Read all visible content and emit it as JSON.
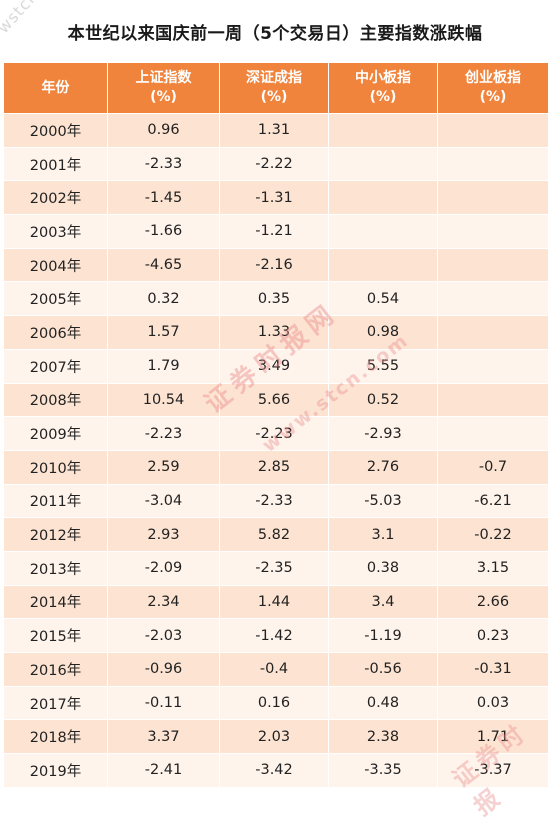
{
  "chart_data": {
    "type": "table",
    "title": "本世纪以来国庆前一周（5个交易日）主要指数涨跌幅",
    "header": {
      "year": "年份",
      "sh": [
        "上证指数",
        "(%)"
      ],
      "sz": [
        "深证成指",
        "(%)"
      ],
      "sme": [
        "中小板指",
        "(%)"
      ],
      "gem": [
        "创业板指",
        "(%)"
      ]
    },
    "rows": [
      {
        "year": "2000年",
        "sh": "0.96",
        "sz": "1.31",
        "sme": "",
        "gem": ""
      },
      {
        "year": "2001年",
        "sh": "-2.33",
        "sz": "-2.22",
        "sme": "",
        "gem": ""
      },
      {
        "year": "2002年",
        "sh": "-1.45",
        "sz": "-1.31",
        "sme": "",
        "gem": ""
      },
      {
        "year": "2003年",
        "sh": "-1.66",
        "sz": "-1.21",
        "sme": "",
        "gem": ""
      },
      {
        "year": "2004年",
        "sh": "-4.65",
        "sz": "-2.16",
        "sme": "",
        "gem": ""
      },
      {
        "year": "2005年",
        "sh": "0.32",
        "sz": "0.35",
        "sme": "0.54",
        "gem": ""
      },
      {
        "year": "2006年",
        "sh": "1.57",
        "sz": "1.33",
        "sme": "0.98",
        "gem": ""
      },
      {
        "year": "2007年",
        "sh": "1.79",
        "sz": "3.49",
        "sme": "5.55",
        "gem": ""
      },
      {
        "year": "2008年",
        "sh": "10.54",
        "sz": "5.66",
        "sme": "0.52",
        "gem": ""
      },
      {
        "year": "2009年",
        "sh": "-2.23",
        "sz": "-2.23",
        "sme": "-2.93",
        "gem": ""
      },
      {
        "year": "2010年",
        "sh": "2.59",
        "sz": "2.85",
        "sme": "2.76",
        "gem": "-0.7"
      },
      {
        "year": "2011年",
        "sh": "-3.04",
        "sz": "-2.33",
        "sme": "-5.03",
        "gem": "-6.21"
      },
      {
        "year": "2012年",
        "sh": "2.93",
        "sz": "5.82",
        "sme": "3.1",
        "gem": "-0.22"
      },
      {
        "year": "2013年",
        "sh": "-2.09",
        "sz": "-2.35",
        "sme": "0.38",
        "gem": "3.15"
      },
      {
        "year": "2014年",
        "sh": "2.34",
        "sz": "1.44",
        "sme": "3.4",
        "gem": "2.66"
      },
      {
        "year": "2015年",
        "sh": "-2.03",
        "sz": "-1.42",
        "sme": "-1.19",
        "gem": "0.23"
      },
      {
        "year": "2016年",
        "sh": "-0.96",
        "sz": "-0.4",
        "sme": "-0.56",
        "gem": "-0.31"
      },
      {
        "year": "2017年",
        "sh": "-0.11",
        "sz": "0.16",
        "sme": "0.48",
        "gem": "0.03"
      },
      {
        "year": "2018年",
        "sh": "3.37",
        "sz": "2.03",
        "sme": "2.38",
        "gem": "1.71"
      },
      {
        "year": "2019年",
        "sh": "-2.41",
        "sz": "-3.42",
        "sme": "-3.35",
        "gem": "-3.37"
      }
    ]
  },
  "watermarks": {
    "top_left": "wstcn",
    "center_cn": "证券时报网",
    "center_url": "www.stcn.com",
    "bottom_right": "证券时报"
  },
  "colors": {
    "header_bg": "#f0843c",
    "row_odd": "#fde4d2",
    "row_even": "#fff4ec",
    "watermark": "#e88c8c"
  }
}
